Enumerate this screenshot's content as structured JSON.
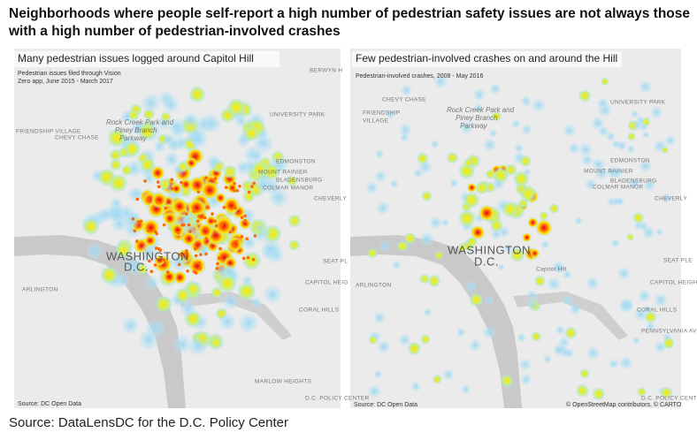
{
  "header": {
    "title": "Neighborhoods where people self-report a high number of pedestrian safety issues are not always those with a high number of pedestrian-involved crashes"
  },
  "maps": [
    {
      "heading": "Many pedestrian issues logged around Capitol Hill",
      "subtitle": [
        "Pedestrian issues filed through Vision",
        "Zero app, June 2015 - March 2017"
      ],
      "places": [
        "BERWYN H",
        "CHEVY CHASE",
        "UNIVERSITY PARK",
        "FRIENDSHIP VILLAGE",
        "Rock Creek Park and",
        "Piney Branch",
        "Parkway",
        "EDMONSTON",
        "MOUNT RAINIER",
        "BLADENSBURG",
        "COLMAR MANOR",
        "CHEVERLY",
        "WASHINGTON",
        "D.C.",
        "ARLINGTON",
        "SEAT PL",
        "CAPITOL HEIG",
        "CORAL HILLS",
        "MARLOW HEIGHTS",
        "D.C. POLICY CENTER"
      ],
      "source": "Source: DC Open Data"
    },
    {
      "heading": "Few pedestrian-involved crashes on and around the Hill",
      "subtitle": [
        "Pedestrian-involved crashes, 2008 - May 2016"
      ],
      "places": [
        "FRIENDSHIP",
        "VILLAGE",
        "CHEVY CHASE",
        "UNIVERSITY PARK",
        "Rock Creek Park and",
        "Piney Branch",
        "Parkway",
        "EDMONSTON",
        "MOUNT RAINIER",
        "BLADENSBURG",
        "COLMAR MANOR",
        "CHEVERLY",
        "WASHINGTON",
        "D.C.",
        "Capitol Hill",
        "ARLINGTON",
        "SEAT PLE",
        "CAPITOL HEIGHT",
        "CORAL HILLS",
        "PENNSYLVANIA AVE",
        "D.C. POLICY CENTER"
      ],
      "source": "Source: DC Open Data",
      "credit": "© OpenStreetMap contributors, © CARTO"
    }
  ],
  "footer": {
    "source": "Source: DataLensDC for the D.C. Policy Center"
  }
}
